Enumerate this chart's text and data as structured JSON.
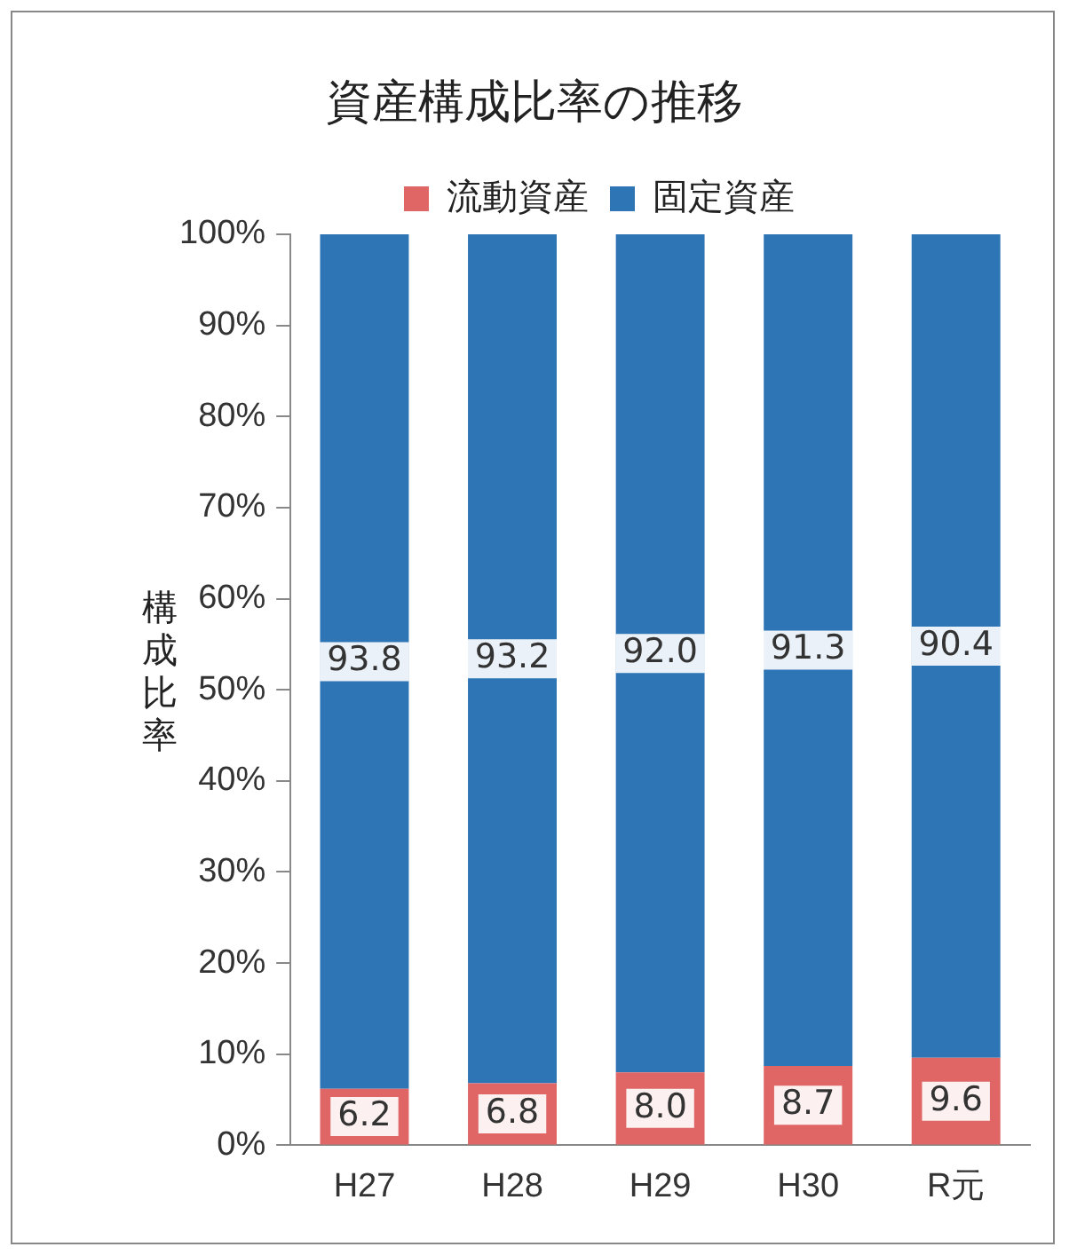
{
  "chart_data": {
    "type": "bar",
    "title": "資産構成比率の推移",
    "ylabel": "構成比率",
    "stacked": true,
    "categories": [
      "H27",
      "H28",
      "H29",
      "H30",
      "R元"
    ],
    "series": [
      {
        "name": "流動資産",
        "color": "#e06666",
        "values": [
          6.2,
          6.8,
          8.0,
          8.7,
          9.6
        ],
        "value_labels": [
          "6.2",
          "6.8",
          "8.0",
          "8.7",
          "9.6"
        ]
      },
      {
        "name": "固定資産",
        "color": "#2e75b6",
        "values": [
          93.8,
          93.2,
          92.0,
          91.3,
          90.4
        ],
        "value_labels": [
          "93.8",
          "93.2",
          "92.0",
          "91.3",
          "90.4"
        ]
      }
    ],
    "ylim": [
      0,
      100
    ],
    "yticks": [
      {
        "value": 0,
        "label": "0%"
      },
      {
        "value": 10,
        "label": "10%"
      },
      {
        "value": 20,
        "label": "20%"
      },
      {
        "value": 30,
        "label": "30%"
      },
      {
        "value": 40,
        "label": "40%"
      },
      {
        "value": 50,
        "label": "50%"
      },
      {
        "value": 60,
        "label": "60%"
      },
      {
        "value": 70,
        "label": "70%"
      },
      {
        "value": 80,
        "label": "80%"
      },
      {
        "value": 90,
        "label": "90%"
      },
      {
        "value": 100,
        "label": "100%"
      }
    ],
    "grid": false,
    "legend": "top"
  }
}
